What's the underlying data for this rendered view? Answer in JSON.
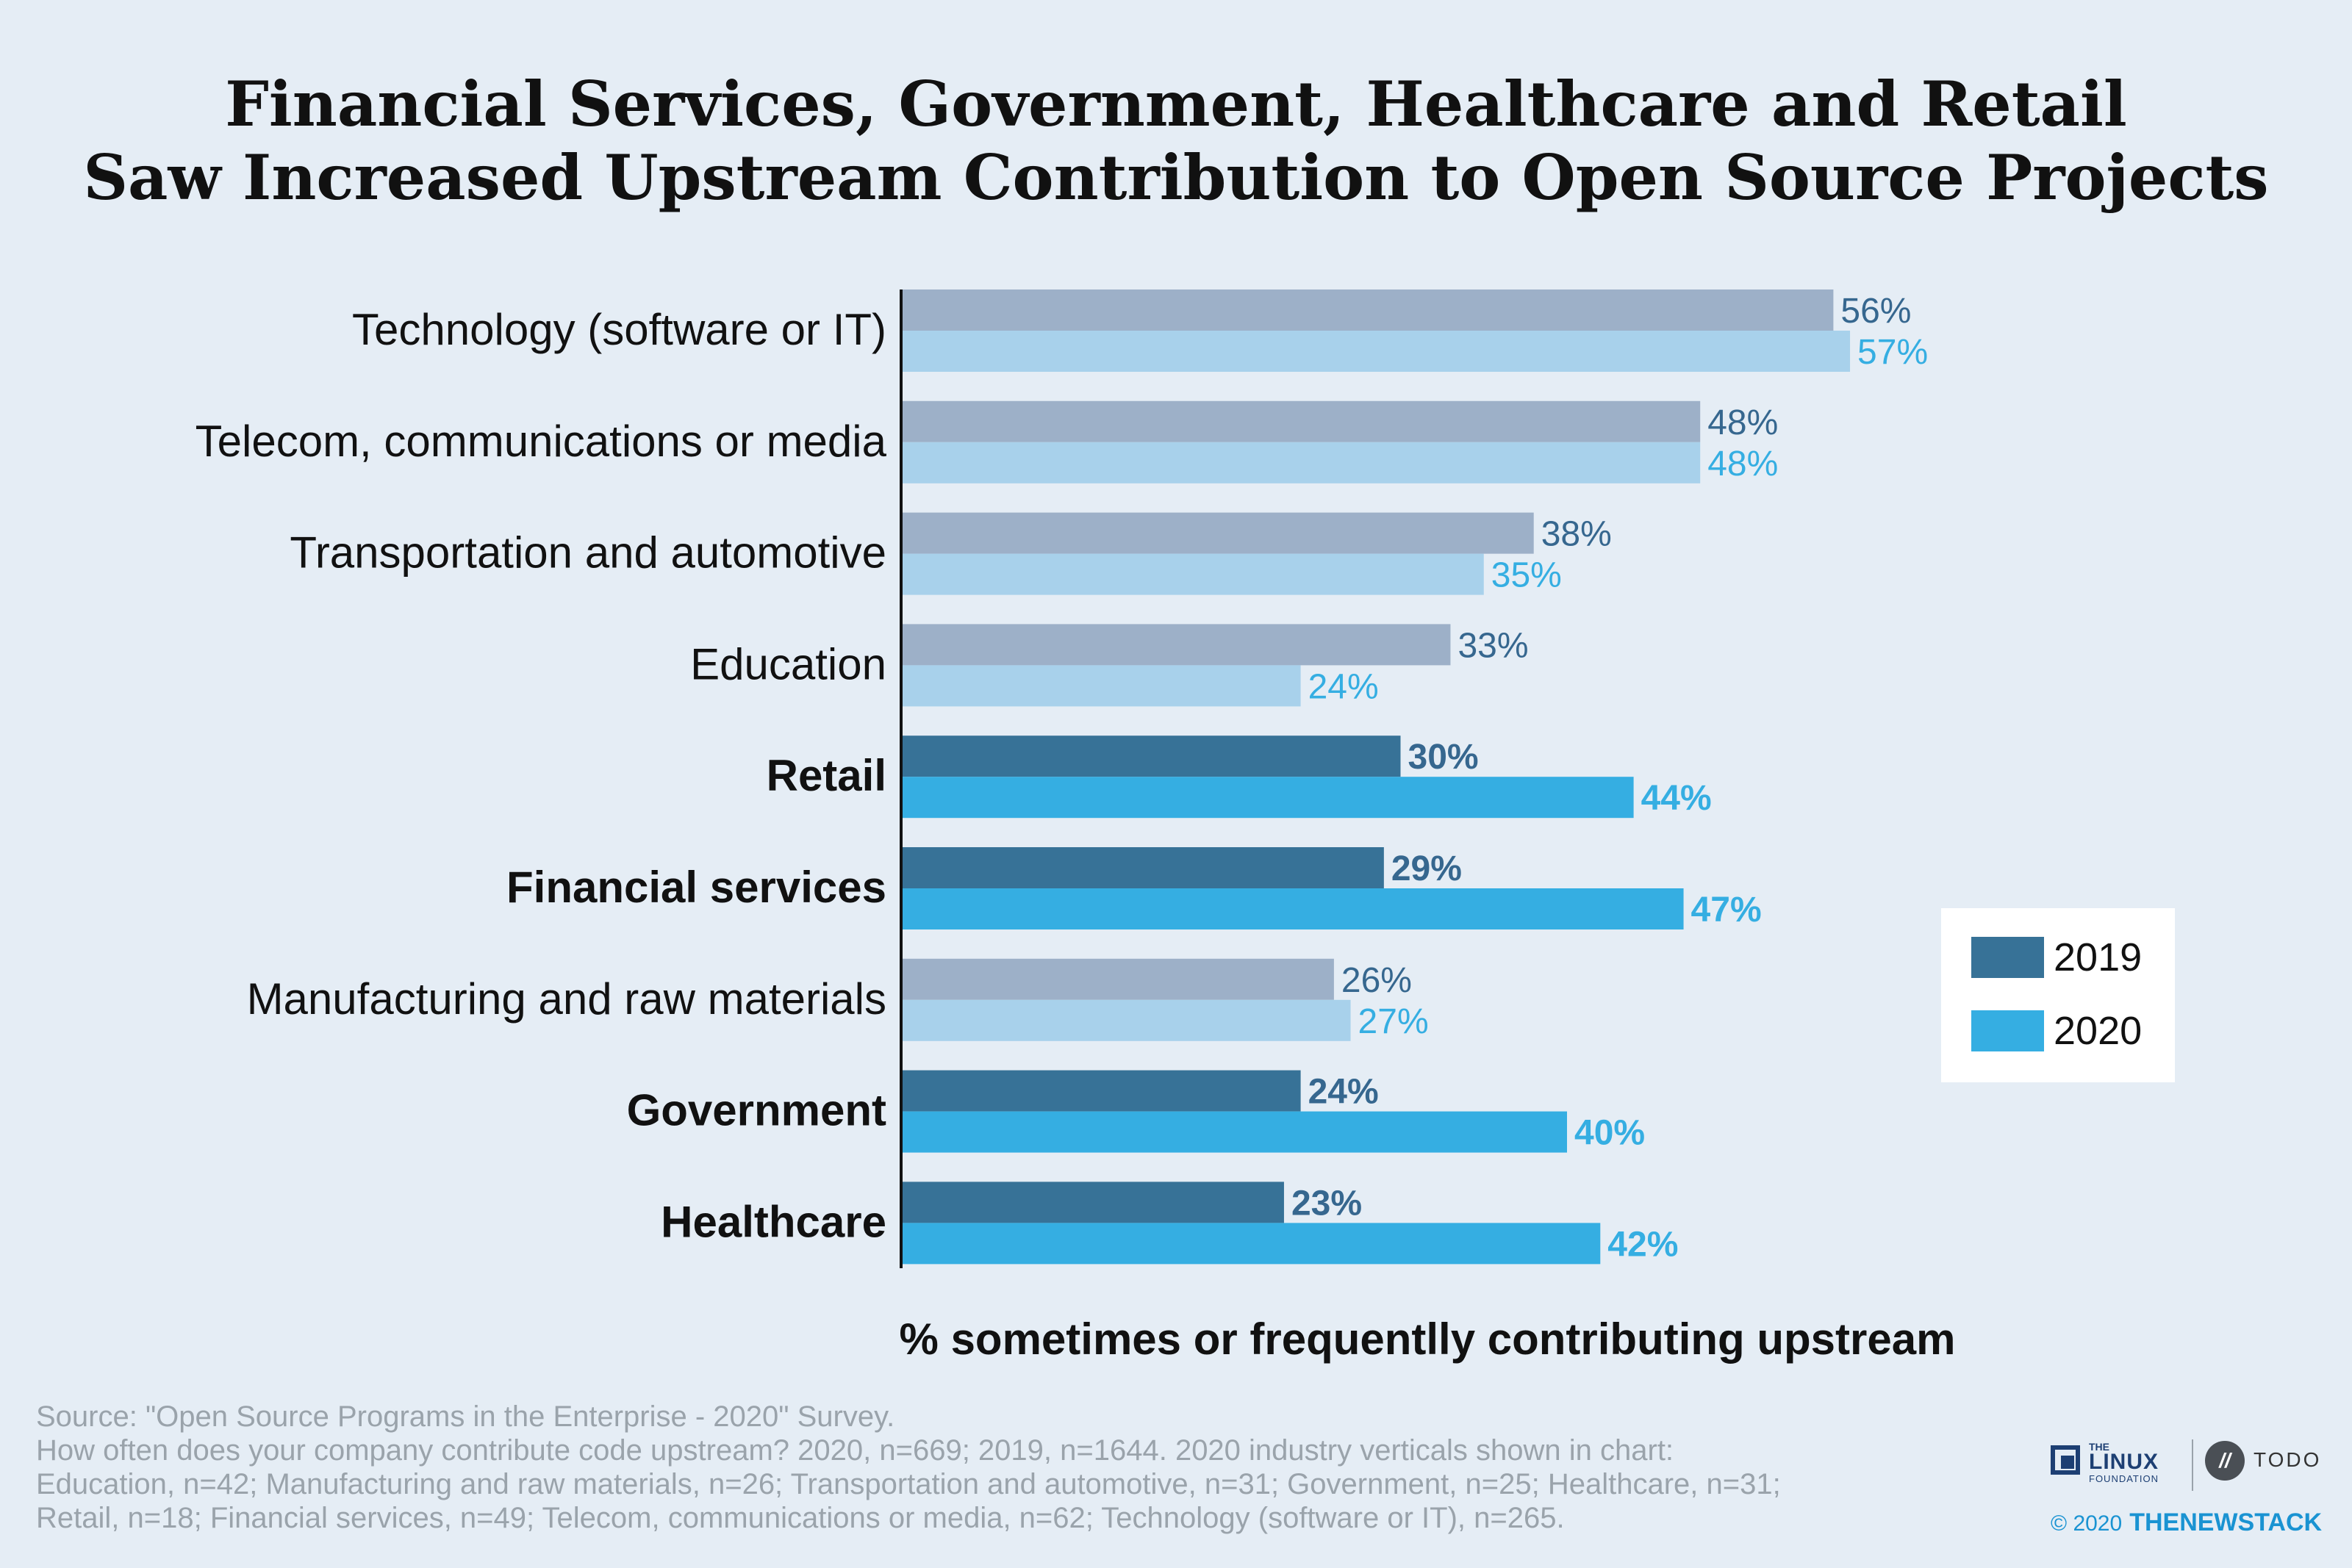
{
  "chart_data": {
    "type": "bar",
    "orientation": "horizontal",
    "title_lines": [
      "Financial Services, Government, Healthcare and Retail",
      "Saw Increased Upstream Contribution to Open Source Projects"
    ],
    "xlabel": "% sometimes or frequentlly contributing upstream",
    "xlim": [
      0,
      100
    ],
    "categories": [
      "Technology (software or IT)",
      "Telecom, communications or media",
      "Transportation and automotive",
      "Education",
      "Retail",
      "Financial services",
      "Manufacturing and raw materials",
      "Government",
      "Healthcare"
    ],
    "highlighted": [
      false,
      false,
      false,
      false,
      true,
      true,
      false,
      true,
      true
    ],
    "series": [
      {
        "name": "2019",
        "values": [
          56,
          48,
          38,
          33,
          30,
          29,
          26,
          24,
          23
        ],
        "labels": [
          "56%",
          "48%",
          "38%",
          "33%",
          "30%",
          "29%",
          "26%",
          "24%",
          "23%"
        ]
      },
      {
        "name": "2020",
        "values": [
          57,
          48,
          35,
          24,
          44,
          47,
          27,
          40,
          42
        ],
        "labels": [
          "57%",
          "48%",
          "35%",
          "24%",
          "44%",
          "47%",
          "27%",
          "40%",
          "42%"
        ]
      }
    ],
    "colors": {
      "2019_highlight": "#377297",
      "2020_highlight": "#35aee2",
      "2019_muted": "#9db0c8",
      "2020_muted": "#a8d1eb",
      "2019_label": "#36678f",
      "2020_label": "#35aee2"
    },
    "legend_position": "right",
    "grid": false
  },
  "footnote": [
    "Source: \"Open Source Programs in the Enterprise - 2020\" Survey.",
    "How often does your company contribute code upstream? 2020, n=669; 2019, n=1644. 2020 industry verticals shown in chart:",
    "Education, n=42; Manufacturing and raw materials, n=26; Transportation and automotive, n=31; Government, n=25; Healthcare, n=31;",
    "Retail, n=18; Financial services, n=49; Telecom, communications or media, n=62; Technology (software or IT), n=265."
  ],
  "credits": {
    "lf_the": "THE",
    "lf_linux": "LINUX",
    "lf_foundation": "FOUNDATION",
    "todo_mark": "//",
    "todo": "TODO",
    "copyright_year": "© 2020",
    "copyright_brand": "THENEWSTACK"
  }
}
